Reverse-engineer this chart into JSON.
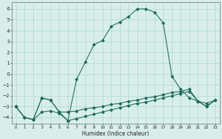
{
  "xlabel": "Humidex (Indice chaleur)",
  "xlim": [
    -0.5,
    23.5
  ],
  "ylim": [
    -4.6,
    6.6
  ],
  "yticks": [
    -4,
    -3,
    -2,
    -1,
    0,
    1,
    2,
    3,
    4,
    5,
    6
  ],
  "xticks": [
    0,
    1,
    2,
    3,
    4,
    5,
    6,
    7,
    8,
    9,
    10,
    11,
    12,
    13,
    14,
    15,
    16,
    17,
    18,
    19,
    20,
    21,
    22,
    23
  ],
  "bg_color": "#d9eeea",
  "grid_color": "#a8d8d0",
  "line_color": "#1a6b5a",
  "curve1_x": [
    0,
    1,
    2,
    3,
    4,
    5,
    6,
    7,
    8,
    9,
    10,
    11,
    12,
    13,
    14,
    15,
    16,
    17,
    18,
    19,
    20,
    21,
    22,
    23
  ],
  "curve1_y": [
    -3.0,
    -4.0,
    -4.2,
    -2.2,
    -2.4,
    -3.5,
    -4.3,
    -0.5,
    1.1,
    2.7,
    3.1,
    4.4,
    4.8,
    5.3,
    6.0,
    6.0,
    5.7,
    4.7,
    -0.2,
    -1.4,
    -2.2,
    -2.5,
    -2.7,
    -2.4
  ],
  "curve2_x": [
    0,
    1,
    2,
    3,
    4,
    5,
    6,
    7,
    8,
    9,
    10,
    11,
    12,
    13,
    14,
    15,
    16,
    17,
    18,
    19,
    20,
    21,
    22,
    23
  ],
  "curve2_y": [
    -3.0,
    -4.0,
    -4.2,
    -2.2,
    -2.4,
    -3.5,
    -3.5,
    -3.4,
    -3.2,
    -3.1,
    -3.0,
    -2.8,
    -2.7,
    -2.5,
    -2.4,
    -2.2,
    -2.1,
    -1.9,
    -1.7,
    -1.6,
    -1.4,
    -2.5,
    -3.0,
    -2.4
  ],
  "curve3_x": [
    0,
    1,
    2,
    3,
    4,
    5,
    6,
    7,
    8,
    9,
    10,
    11,
    12,
    13,
    14,
    15,
    16,
    17,
    18,
    19,
    20,
    21,
    22,
    23
  ],
  "curve3_y": [
    -3.0,
    -4.0,
    -4.2,
    -3.5,
    -3.4,
    -3.6,
    -4.3,
    -4.1,
    -3.9,
    -3.7,
    -3.5,
    -3.3,
    -3.1,
    -2.9,
    -2.7,
    -2.6,
    -2.4,
    -2.2,
    -2.0,
    -1.8,
    -1.6,
    -2.5,
    -3.0,
    -2.4
  ]
}
